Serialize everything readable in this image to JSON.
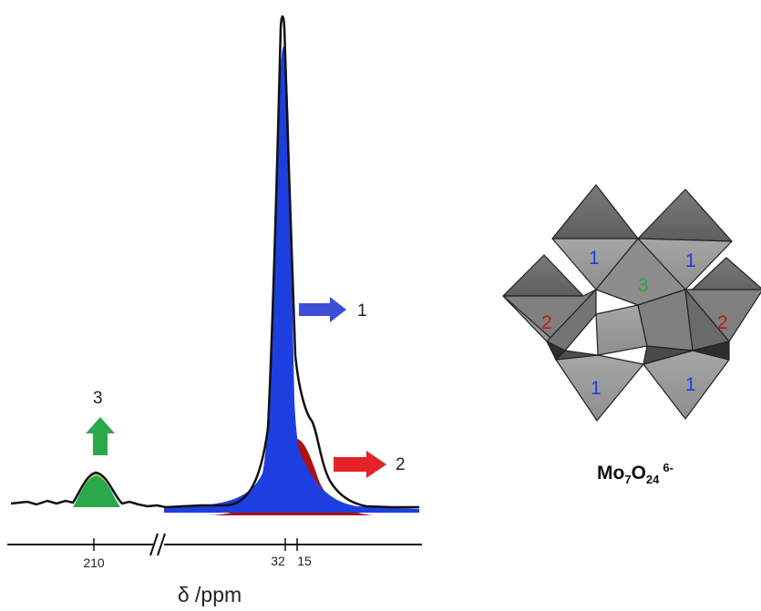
{
  "spectrum": {
    "axis_label": "δ /ppm",
    "ticks": [
      "210",
      "32",
      "15"
    ],
    "peaks": [
      {
        "label": "1",
        "color": "#2b3fd6"
      },
      {
        "label": "2",
        "color": "#b01010"
      },
      {
        "label": "3",
        "color": "#2aa84a"
      }
    ]
  },
  "structure": {
    "formula": {
      "base": "Mo",
      "sub1": "7",
      "mid": "O",
      "sub2": "24",
      "charge": "6-"
    },
    "site_labels": [
      "1",
      "1",
      "3",
      "2",
      "2",
      "1",
      "1"
    ],
    "colors": {
      "site1": "#1a3fe0",
      "site2": "#c01818",
      "site3": "#2aa84a",
      "octahedron": "#8a8a8a"
    }
  }
}
